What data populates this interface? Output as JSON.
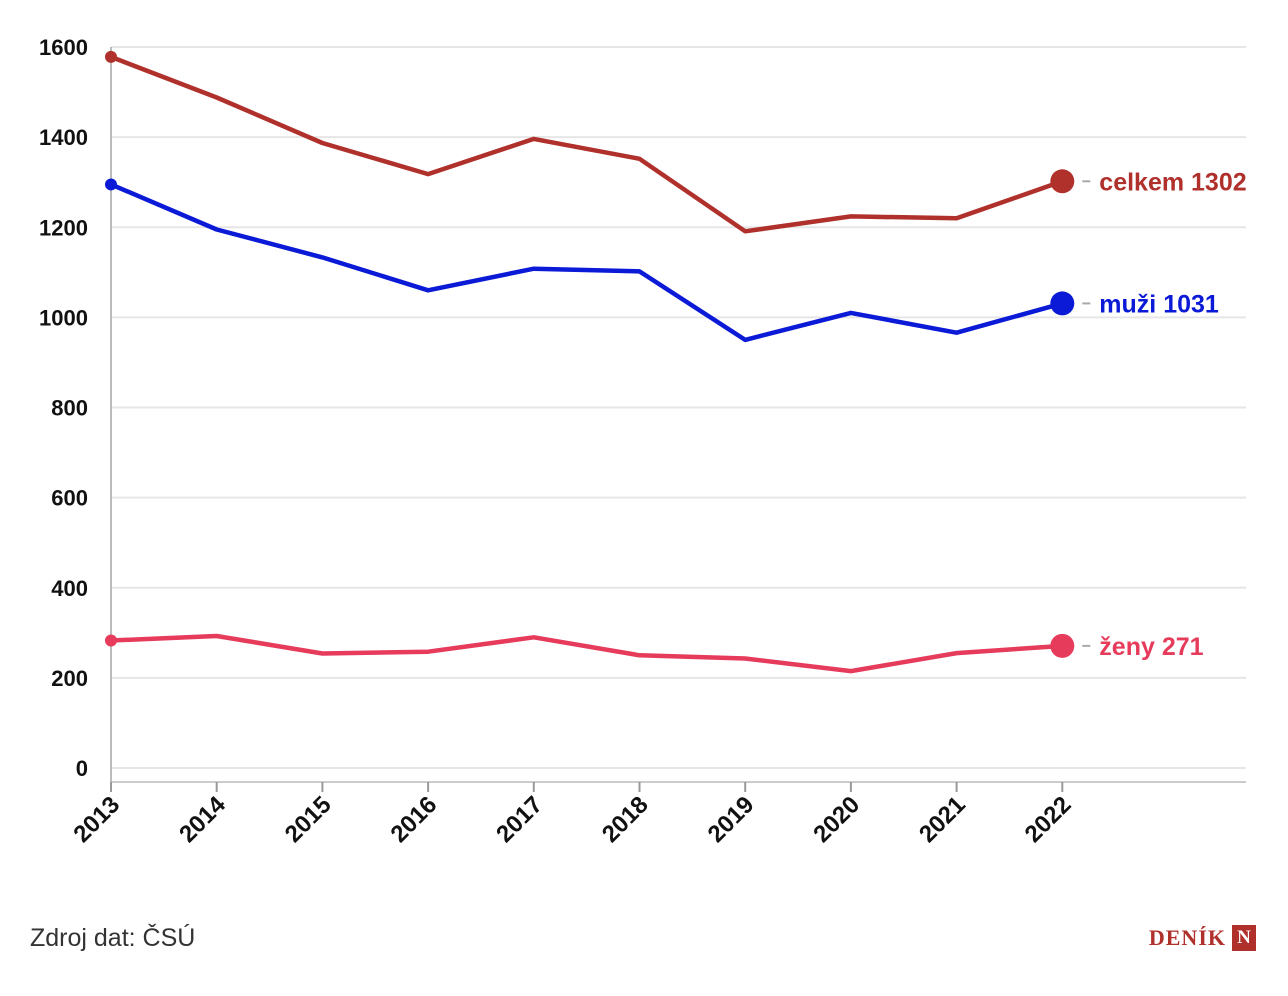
{
  "chart_data": {
    "type": "line",
    "title": "",
    "xlabel": "",
    "ylabel": "",
    "ylim": [
      0,
      1600
    ],
    "y_ticks": [
      0,
      200,
      400,
      600,
      800,
      1000,
      1200,
      1400,
      1600
    ],
    "grid": true,
    "categories": [
      "2013",
      "2014",
      "2015",
      "2016",
      "2017",
      "2018",
      "2019",
      "2020",
      "2021",
      "2022"
    ],
    "series": [
      {
        "name": "celkem",
        "color": "#b0302b",
        "values": [
          1578,
          1488,
          1387,
          1318,
          1396,
          1352,
          1191,
          1224,
          1220,
          1302
        ],
        "end_label": "celkem 1302"
      },
      {
        "name": "muži",
        "color": "#0a1ad6",
        "values": [
          1295,
          1195,
          1133,
          1060,
          1108,
          1102,
          950,
          1010,
          966,
          1031
        ],
        "end_label": "muži 1031"
      },
      {
        "name": "ženy",
        "color": "#e63b5a",
        "values": [
          283,
          293,
          254,
          258,
          290,
          250,
          243,
          215,
          255,
          271
        ],
        "end_label": "ženy 271"
      }
    ]
  },
  "footer": {
    "source": "Zdroj dat: ČSÚ",
    "logo_text": "DENÍK",
    "logo_mark": "N"
  }
}
